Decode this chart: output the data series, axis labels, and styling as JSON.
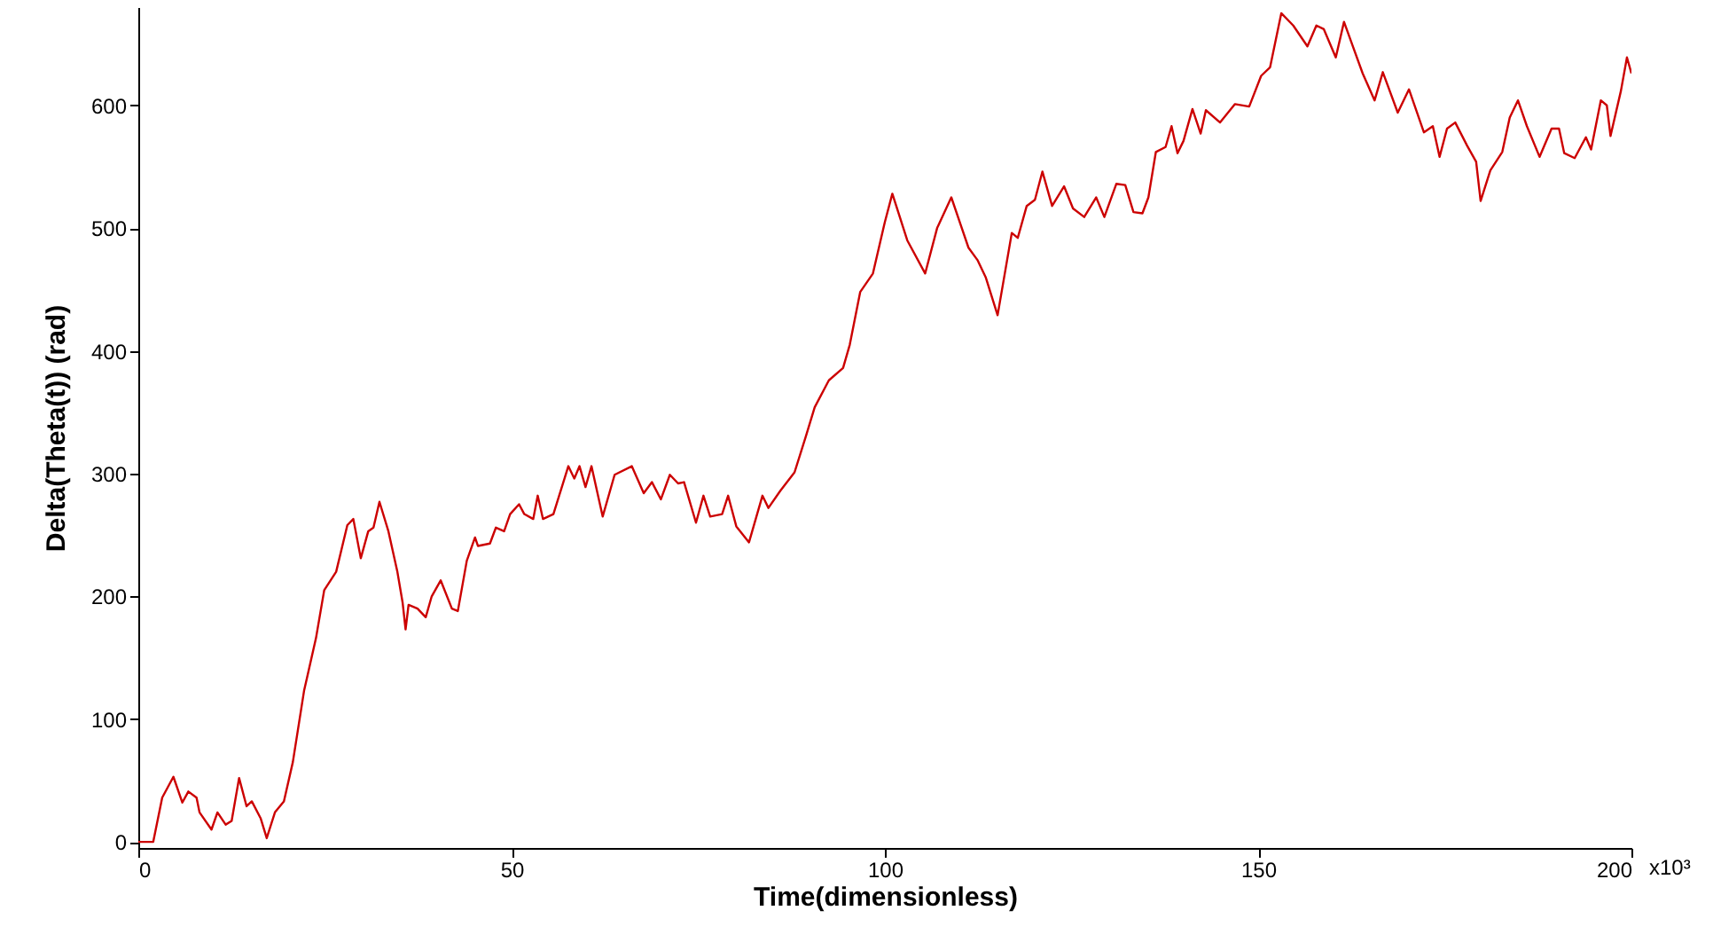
{
  "chart_data": {
    "type": "line",
    "xlabel": "Time(dimensionless)",
    "ylabel": "Delta(Theta(t)) (rad)",
    "xlim": [
      0,
      200
    ],
    "ylim": [
      -5,
      680
    ],
    "xticks": [
      0,
      50,
      100,
      150,
      200
    ],
    "annotations": [
      "x10³"
    ],
    "yticks": [
      0,
      100,
      200,
      300,
      400,
      500,
      600
    ],
    "grid": false,
    "marker": "none",
    "line_style": "solid",
    "series": [
      {
        "color": "#cc0000",
        "x": [
          0,
          2.0,
          3.2,
          4.7,
          5.9,
          6.7,
          7.8,
          8.2,
          9.8,
          10.6,
          11.7,
          12.5,
          13.5,
          14.5,
          15.2,
          16.4,
          17.2,
          18.3,
          19.5,
          20.7,
          22.2,
          23.8,
          24.9,
          26.5,
          28.0,
          28.8,
          29.8,
          30.8,
          31.5,
          32.3,
          33.5,
          34.7,
          35.4,
          35.8,
          36.2,
          37.4,
          38.5,
          39.3,
          40.5,
          42.0,
          42.8,
          44.0,
          45.1,
          45.5,
          47.1,
          47.9,
          49.0,
          49.8,
          51.0,
          51.7,
          52.9,
          53.5,
          54.2,
          55.6,
          57.6,
          58.4,
          59.1,
          59.9,
          60.7,
          62.2,
          63.8,
          66.1,
          67.7,
          68.8,
          70.0,
          71.2,
          72.3,
          73.1,
          74.7,
          75.7,
          76.6,
          78.2,
          79.0,
          80.1,
          81.8,
          83.6,
          84.4,
          86.0,
          87.9,
          89.4,
          90.6,
          92.5,
          94.4,
          95.3,
          96.7,
          98.4,
          100.0,
          101.0,
          103.0,
          105.4,
          107.0,
          108.9,
          111.2,
          112.4,
          113.5,
          115.1,
          117.0,
          117.8,
          119.0,
          120.1,
          121.1,
          122.4,
          124.0,
          125.2,
          126.7,
          128.3,
          129.4,
          131.0,
          132.2,
          133.3,
          134.5,
          135.3,
          136.3,
          137.6,
          138.4,
          139.2,
          140.0,
          141.2,
          142.3,
          143.0,
          144.9,
          146.9,
          148.8,
          150.4,
          151.6,
          153.1,
          154.7,
          156.6,
          157.8,
          158.8,
          160.4,
          161.5,
          164.0,
          165.6,
          166.7,
          168.7,
          170.2,
          172.2,
          173.4,
          174.3,
          175.3,
          176.4,
          178.0,
          179.2,
          179.8,
          181.1,
          182.7,
          183.7,
          184.8,
          186.0,
          187.7,
          189.3,
          190.3,
          191.0,
          192.4,
          193.9,
          194.6,
          195.9,
          196.7,
          197.2,
          198.6,
          199.4,
          200.0
        ],
        "values": [
          0,
          0,
          36,
          53,
          32,
          41,
          36,
          24,
          10,
          24,
          14,
          17,
          52,
          29,
          33,
          19,
          3,
          24,
          33,
          65,
          123,
          166,
          205,
          220,
          258,
          263,
          231,
          253,
          256,
          277,
          253,
          220,
          195,
          173,
          193,
          190,
          183,
          200,
          213,
          190,
          188,
          229,
          248,
          241,
          243,
          256,
          253,
          267,
          275,
          267,
          263,
          282,
          263,
          267,
          306,
          296,
          306,
          289,
          306,
          265,
          299,
          306,
          284,
          293,
          279,
          299,
          292,
          293,
          260,
          282,
          265,
          267,
          282,
          257,
          244,
          282,
          272,
          286,
          301,
          330,
          354,
          376,
          386,
          405,
          448,
          463,
          505,
          528,
          490,
          463,
          500,
          525,
          484,
          474,
          460,
          429,
          496,
          492,
          518,
          523,
          546,
          518,
          534,
          516,
          509,
          525,
          509,
          536,
          535,
          513,
          512,
          525,
          562,
          566,
          583,
          561,
          571,
          597,
          577,
          596,
          586,
          601,
          599,
          624,
          631,
          675,
          665,
          648,
          665,
          662,
          639,
          668,
          626,
          604,
          627,
          594,
          613,
          578,
          583,
          558,
          581,
          586,
          567,
          554,
          522,
          547,
          562,
          590,
          604,
          583,
          558,
          581,
          581,
          561,
          557,
          574,
          564,
          604,
          600,
          575,
          612,
          639,
          626
        ]
      }
    ]
  }
}
